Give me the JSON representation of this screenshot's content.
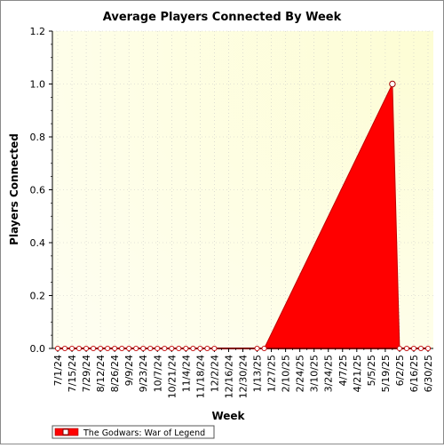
{
  "chart_data": {
    "type": "area",
    "title": "Average Players Connected By Week",
    "xlabel": "Week",
    "ylabel": "Players Connected",
    "ylim": [
      0,
      1.2
    ],
    "yticks": [
      0.0,
      0.2,
      0.4,
      0.6,
      0.8,
      1.0,
      1.2
    ],
    "ytick_labels": [
      "0.0",
      "0.2",
      "0.4",
      "0.6",
      "0.8",
      "1.0",
      "1.2"
    ],
    "x_tick_labels": [
      "7/1/24",
      "7/15/24",
      "7/29/24",
      "8/12/24",
      "8/26/24",
      "9/9/24",
      "9/23/24",
      "10/7/24",
      "10/21/24",
      "11/4/24",
      "11/18/24",
      "12/2/24",
      "12/16/24",
      "12/30/24",
      "1/13/25",
      "1/27/25",
      "2/10/25",
      "2/24/25",
      "3/10/25",
      "3/24/25",
      "4/7/25",
      "4/21/25",
      "5/5/25",
      "5/19/25",
      "6/2/25",
      "6/16/25",
      "6/30/25"
    ],
    "x": [
      "7/1/24",
      "7/8/24",
      "7/15/24",
      "7/22/24",
      "7/29/24",
      "8/5/24",
      "8/12/24",
      "8/19/24",
      "8/26/24",
      "9/2/24",
      "9/9/24",
      "9/16/24",
      "9/23/24",
      "9/30/24",
      "10/7/24",
      "10/14/24",
      "10/21/24",
      "10/28/24",
      "11/4/24",
      "11/11/24",
      "11/18/24",
      "11/25/24",
      "12/2/24",
      "12/9/24",
      "12/16/24",
      "12/23/24",
      "12/30/24",
      "1/6/25",
      "1/13/25",
      "1/20/25",
      "1/27/25",
      "2/3/25",
      "2/10/25",
      "2/17/25",
      "2/24/25",
      "3/3/25",
      "3/10/25",
      "3/17/25",
      "3/24/25",
      "3/31/25",
      "4/7/25",
      "4/14/25",
      "4/21/25",
      "4/28/25",
      "5/5/25",
      "5/12/25",
      "5/19/25",
      "5/26/25",
      "6/2/25",
      "6/9/25",
      "6/16/25",
      "6/23/25",
      "6/30/25"
    ],
    "series": [
      {
        "name": "The Godwars: War of Legend",
        "color": "#ff0000",
        "values": [
          0,
          0,
          0,
          0,
          0,
          0,
          0,
          0,
          0,
          0,
          0,
          0,
          0,
          0,
          0,
          0,
          0,
          0,
          0,
          0,
          0,
          0,
          0,
          null,
          null,
          null,
          null,
          null,
          0,
          0,
          null,
          null,
          null,
          null,
          null,
          null,
          null,
          null,
          null,
          null,
          null,
          null,
          null,
          null,
          null,
          null,
          null,
          1.0,
          0,
          0,
          0,
          0,
          0
        ],
        "area_outline": [
          {
            "x": "1/20/25",
            "y": 0
          },
          {
            "x": "5/26/25",
            "y": 1.0
          },
          {
            "x": "6/2/25",
            "y": 0
          }
        ]
      }
    ],
    "grid": true,
    "legend_position": "bottom-left",
    "plot_background": "#fdfde0"
  }
}
